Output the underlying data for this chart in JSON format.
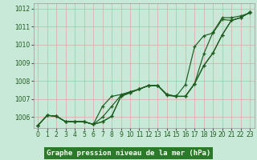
{
  "title": "Graphe pression niveau de la mer (hPa)",
  "x": [
    0,
    1,
    2,
    3,
    4,
    5,
    6,
    7,
    8,
    9,
    10,
    11,
    12,
    13,
    14,
    15,
    16,
    17,
    18,
    19,
    20,
    21,
    22,
    23
  ],
  "series": [
    [
      1005.55,
      1006.1,
      1006.05,
      1005.75,
      1005.75,
      1005.75,
      1005.6,
      1005.75,
      1006.05,
      1007.15,
      1007.35,
      1007.55,
      1007.75,
      1007.75,
      1007.25,
      1007.15,
      1007.15,
      1007.85,
      1008.85,
      1009.55,
      1010.55,
      1011.35,
      1011.5,
      1011.8
    ],
    [
      1005.55,
      1006.1,
      1006.05,
      1005.75,
      1005.75,
      1005.75,
      1005.6,
      1006.0,
      1006.6,
      1007.2,
      1007.4,
      1007.55,
      1007.75,
      1007.75,
      1007.2,
      1007.15,
      1007.8,
      1009.9,
      1010.5,
      1010.65,
      1011.4,
      1011.35,
      1011.5,
      1011.8
    ],
    [
      1005.55,
      1006.1,
      1006.05,
      1005.75,
      1005.75,
      1005.75,
      1005.6,
      1005.75,
      1006.05,
      1007.15,
      1007.35,
      1007.55,
      1007.75,
      1007.75,
      1007.25,
      1007.15,
      1007.15,
      1007.85,
      1009.5,
      1010.7,
      1011.5,
      1011.5,
      1011.6,
      1011.75
    ],
    [
      1005.55,
      1006.1,
      1006.05,
      1005.75,
      1005.75,
      1005.75,
      1005.6,
      1006.6,
      1007.15,
      1007.25,
      1007.4,
      1007.55,
      1007.75,
      1007.75,
      1007.25,
      1007.15,
      1007.15,
      1007.85,
      1008.85,
      1009.55,
      1010.55,
      1011.35,
      1011.5,
      1011.8
    ]
  ],
  "line_color": "#1f5c1f",
  "bg_color": "#c8e8d8",
  "plot_bg_color": "#c8e8d8",
  "grid_color_h": "#d8a0a0",
  "grid_color_v": "#d8a0a0",
  "title_bg_color": "#2a7a2a",
  "title_text_color": "#ffffff",
  "ylim": [
    1005.4,
    1012.3
  ],
  "yticks": [
    1006,
    1007,
    1008,
    1009,
    1010,
    1011,
    1012
  ],
  "xticks": [
    0,
    1,
    2,
    3,
    4,
    5,
    6,
    7,
    8,
    9,
    10,
    11,
    12,
    13,
    14,
    15,
    16,
    17,
    18,
    19,
    20,
    21,
    22,
    23
  ],
  "tick_fontsize": 5.5,
  "line_width": 0.85,
  "marker_size": 3.0
}
